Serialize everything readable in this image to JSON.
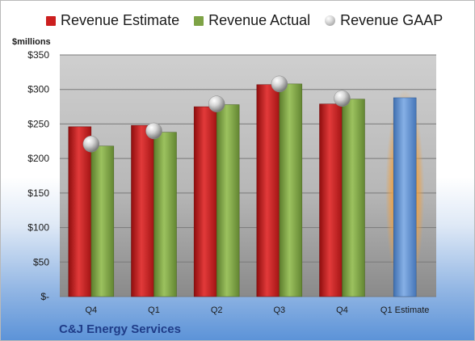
{
  "chart_data": {
    "type": "bar",
    "ylabel": "$millions",
    "ylim": [
      0,
      350
    ],
    "yticks": [
      0,
      50,
      100,
      150,
      200,
      250,
      300,
      350
    ],
    "ytick_labels": [
      "$-",
      "$50",
      "$100",
      "$150",
      "$200",
      "$250",
      "$300",
      "$350"
    ],
    "categories": [
      "Q4",
      "Q1",
      "Q2",
      "Q3",
      "Q4",
      "Q1 Estimate"
    ],
    "series": [
      {
        "name": "Revenue Estimate",
        "type": "bar",
        "color": "#cc1f1f",
        "values": [
          246,
          248,
          275,
          307,
          279,
          null
        ]
      },
      {
        "name": "Revenue Actual",
        "type": "bar",
        "color": "#7ea346",
        "values": [
          218,
          238,
          278,
          308,
          286,
          null
        ]
      },
      {
        "name": "Revenue GAAP",
        "type": "marker",
        "color": "#bdbdbd",
        "values": [
          221,
          240,
          279,
          308,
          287,
          null
        ]
      },
      {
        "name": "Q1 Estimate",
        "type": "bar",
        "color": "#5b8fd0",
        "highlight": "#f0a040",
        "values": [
          null,
          null,
          null,
          null,
          null,
          288
        ]
      }
    ],
    "grid": true,
    "legend_position": "top"
  },
  "company": "C&J Energy Services"
}
